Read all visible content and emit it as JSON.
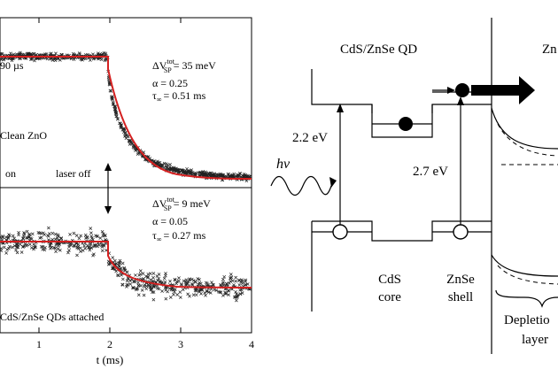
{
  "left_panel": {
    "top": {
      "label_tau": "90 µs",
      "label_sample": "Clean ZnO",
      "label_on": "on",
      "label_off": "laser off",
      "dv_prefix": "ΔV",
      "dv_sup": "tot",
      "dv_sub": "SP",
      "dv_value": "= 35 meV",
      "alpha": "α = 0.25",
      "tau_prefix": "τ",
      "tau_sub": "∞",
      "tau_value": "= 0.51 ms"
    },
    "bottom": {
      "dv_prefix": "ΔV",
      "dv_sup": "tot",
      "dv_sub": "SP",
      "dv_value": "= 9 meV",
      "alpha": "α = 0.05",
      "tau_prefix": "τ",
      "tau_sub": "∞",
      "tau_value": "= 0.27 ms",
      "label_sample": "CdS/ZnSe QDs attached"
    },
    "x_ticks": [
      "1",
      "2",
      "3",
      "4"
    ],
    "x_label": "t (ms)"
  },
  "right_panel": {
    "title_qd": "CdS/ZnSe QD",
    "title_zno": "Zn",
    "energy_core": "2.2 eV",
    "energy_shell": "2.7 eV",
    "photon": "hν",
    "core_line1": "CdS",
    "core_line2": "core",
    "shell_line1": "ZnSe",
    "shell_line2": "shell",
    "depletion_line1": "Depletio",
    "depletion_line2": "layer"
  },
  "colors": {
    "fit_line": "#d42020",
    "data_marker": "#222222"
  }
}
